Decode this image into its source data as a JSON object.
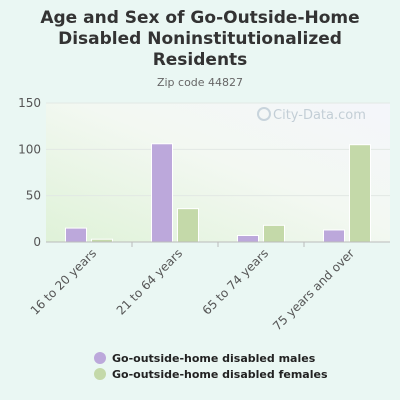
{
  "chart_data": {
    "type": "bar",
    "title_lines": [
      "Age and Sex of Go-Outside-Home",
      "Disabled Noninstitutionalized",
      "Residents"
    ],
    "subtitle": "Zip code 44827",
    "categories": [
      "16 to 20 years",
      "21 to 64 years",
      "65 to 74 years",
      "75 years and over"
    ],
    "series": [
      {
        "name": "Go-outside-home disabled males",
        "color": "#bca8db",
        "values": [
          15,
          106,
          7,
          13
        ]
      },
      {
        "name": "Go-outside-home disabled females",
        "color": "#c4d9a9",
        "values": [
          3,
          36,
          18,
          105
        ]
      }
    ],
    "yticks": [
      0,
      50,
      100,
      150
    ],
    "ylim": [
      0,
      150
    ],
    "grid": true,
    "legend_position": "bottom",
    "watermark": "City-Data.com"
  }
}
